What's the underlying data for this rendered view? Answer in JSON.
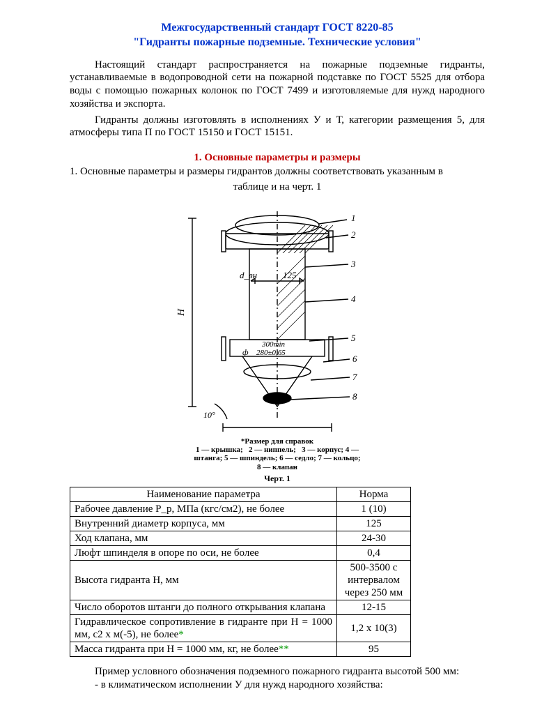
{
  "title_line1": "Межгосударственный стандарт ГОСТ 8220-85",
  "title_line2": "\"Гидранты пожарные подземные. Технические условия\"",
  "para1": "Настоящий стандарт распространяется на пожарные подземные гидранты, устанавливаемые в водопроводной сети на пожарной подставке по ГОСТ 5525 для отбора воды с помощью пожарных колонок по ГОСТ 7499 и изготовляемые для нужд народного хозяйства и экспорта.",
  "para2": "Гидранты должны изготовлять в исполнениях У и Т, категории размещения 5, для атмосферы типа П по ГОСТ 15150 и ГОСТ 15151.",
  "section1_head": "1. Основные параметры и размеры",
  "section1_line": "1. Основные параметры и размеры гидрантов должны соответствовать указанным в",
  "caption_top": "таблице и на черт. 1",
  "fig_ref": "*Размер для справок",
  "fig_legend1": "1 — крышка;   2 — ниппель;   3 — корпус; 4 —",
  "fig_legend2": "штанга; 5 — шпиндель; 6 — седло; 7 — кольцо;",
  "fig_legend3": "8 — клапан",
  "fig_num": "Черт. 1",
  "table": {
    "headers": [
      "Наименование параметра",
      "Норма"
    ],
    "rows": [
      {
        "name": "Рабочее давление P_р, МПа (кгс/см2), не более",
        "val": "1 (10)"
      },
      {
        "name": "Внутренний диаметр корпуса, мм",
        "val": "125"
      },
      {
        "name": "Ход клапана, мм",
        "val": "24-30"
      },
      {
        "name": "Люфт шпинделя в опоре по оси, не более",
        "val": "0,4"
      },
      {
        "name": "Высота гидранта H, мм",
        "val": "500-3500 с интервалом через 250 мм"
      },
      {
        "name": "Число оборотов штанги до полного открывания клапана",
        "val": "12-15"
      },
      {
        "name": "Гидравлическое сопротивление в гидранте при H = 1000 мм, с2 х м(-5), не более",
        "val": "1,2 х 10(3)",
        "star": "*"
      },
      {
        "name": "Масса гидранта при H = 1000 мм, кг, не более",
        "val": "95",
        "star": "**"
      }
    ]
  },
  "footer1": "Пример условного обозначения подземного пожарного гидранта высотой 500 мм:",
  "footer2": "- в климатическом исполнении У для нужд народного хозяйства:",
  "drawing": {
    "labels": {
      "d": "d_вн",
      "n125": "125",
      "n300": "300min",
      "n280": "280±0,65",
      "H": "H",
      "ang": "10°",
      "phi": "ф"
    },
    "callouts": [
      "1",
      "2",
      "3",
      "4",
      "5",
      "6",
      "7",
      "8"
    ]
  }
}
